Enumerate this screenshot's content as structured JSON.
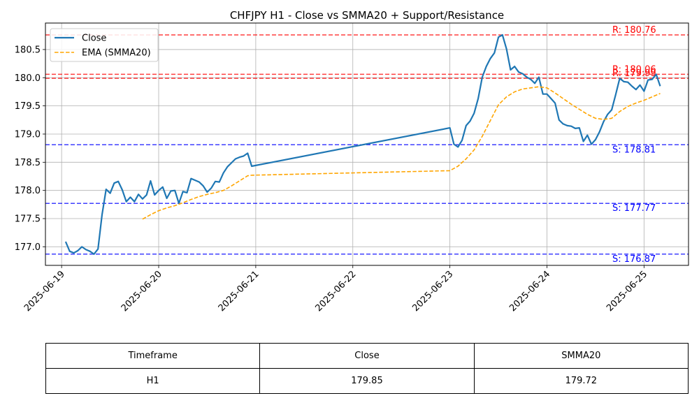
{
  "chart_data": {
    "type": "line",
    "title": "CHFJPY H1 - Close vs SMMA20 + Support/Resistance",
    "xlabel": "",
    "ylabel": "",
    "x_tick_labels": [
      "2025-06-19",
      "2025-06-20",
      "2025-06-21",
      "2025-06-22",
      "2025-06-23",
      "2025-06-24",
      "2025-06-25"
    ],
    "y_tick_labels": [
      "177.0",
      "177.5",
      "178.0",
      "178.5",
      "179.0",
      "179.5",
      "180.0",
      "180.5"
    ],
    "xlim": [
      "2025-06-18 20:00",
      "2025-06-25 11:00"
    ],
    "ylim": [
      176.67,
      180.97
    ],
    "grid": true,
    "legend": "top-left",
    "series": [
      {
        "name": "Close",
        "color": "#1f77b4",
        "style": "solid",
        "points": [
          [
            "2025-06-19 01:00",
            177.09
          ],
          [
            "2025-06-19 02:00",
            176.92
          ],
          [
            "2025-06-19 03:00",
            176.89
          ],
          [
            "2025-06-19 04:00",
            176.93
          ],
          [
            "2025-06-19 05:00",
            177.0
          ],
          [
            "2025-06-19 06:00",
            176.95
          ],
          [
            "2025-06-19 07:00",
            176.92
          ],
          [
            "2025-06-19 08:00",
            176.87
          ],
          [
            "2025-06-19 09:00",
            176.96
          ],
          [
            "2025-06-19 10:00",
            177.57
          ],
          [
            "2025-06-19 11:00",
            178.02
          ],
          [
            "2025-06-19 12:00",
            177.95
          ],
          [
            "2025-06-19 13:00",
            178.13
          ],
          [
            "2025-06-19 14:00",
            178.16
          ],
          [
            "2025-06-19 15:00",
            178.01
          ],
          [
            "2025-06-19 16:00",
            177.8
          ],
          [
            "2025-06-19 17:00",
            177.88
          ],
          [
            "2025-06-19 18:00",
            177.8
          ],
          [
            "2025-06-19 19:00",
            177.93
          ],
          [
            "2025-06-19 20:00",
            177.85
          ],
          [
            "2025-06-19 21:00",
            177.92
          ],
          [
            "2025-06-19 22:00",
            178.17
          ],
          [
            "2025-06-19 23:00",
            177.92
          ],
          [
            "2025-06-20 00:00",
            178.0
          ],
          [
            "2025-06-20 01:00",
            178.06
          ],
          [
            "2025-06-20 02:00",
            177.86
          ],
          [
            "2025-06-20 03:00",
            177.99
          ],
          [
            "2025-06-20 04:00",
            178.0
          ],
          [
            "2025-06-20 05:00",
            177.77
          ],
          [
            "2025-06-20 06:00",
            177.98
          ],
          [
            "2025-06-20 07:00",
            177.96
          ],
          [
            "2025-06-20 08:00",
            178.21
          ],
          [
            "2025-06-20 09:00",
            178.18
          ],
          [
            "2025-06-20 10:00",
            178.15
          ],
          [
            "2025-06-20 11:00",
            178.08
          ],
          [
            "2025-06-20 12:00",
            177.97
          ],
          [
            "2025-06-20 13:00",
            178.04
          ],
          [
            "2025-06-20 14:00",
            178.16
          ],
          [
            "2025-06-20 15:00",
            178.15
          ],
          [
            "2025-06-20 16:00",
            178.31
          ],
          [
            "2025-06-20 17:00",
            178.42
          ],
          [
            "2025-06-20 18:00",
            178.49
          ],
          [
            "2025-06-20 19:00",
            178.56
          ],
          [
            "2025-06-20 20:00",
            178.59
          ],
          [
            "2025-06-20 21:00",
            178.61
          ],
          [
            "2025-06-20 22:00",
            178.66
          ],
          [
            "2025-06-20 23:00",
            178.43
          ],
          [
            "2025-06-23 00:00",
            179.11
          ],
          [
            "2025-06-23 01:00",
            178.82
          ],
          [
            "2025-06-23 02:00",
            178.77
          ],
          [
            "2025-06-23 03:00",
            178.89
          ],
          [
            "2025-06-23 04:00",
            179.15
          ],
          [
            "2025-06-23 05:00",
            179.23
          ],
          [
            "2025-06-23 06:00",
            179.37
          ],
          [
            "2025-06-23 07:00",
            179.63
          ],
          [
            "2025-06-23 08:00",
            180.01
          ],
          [
            "2025-06-23 09:00",
            180.2
          ],
          [
            "2025-06-23 10:00",
            180.34
          ],
          [
            "2025-06-23 11:00",
            180.44
          ],
          [
            "2025-06-23 12:00",
            180.72
          ],
          [
            "2025-06-23 13:00",
            180.76
          ],
          [
            "2025-06-23 14:00",
            180.51
          ],
          [
            "2025-06-23 15:00",
            180.14
          ],
          [
            "2025-06-23 16:00",
            180.2
          ],
          [
            "2025-06-23 17:00",
            180.1
          ],
          [
            "2025-06-23 18:00",
            180.07
          ],
          [
            "2025-06-23 19:00",
            180.01
          ],
          [
            "2025-06-23 20:00",
            179.97
          ],
          [
            "2025-06-23 21:00",
            179.9
          ],
          [
            "2025-06-23 22:00",
            180.01
          ],
          [
            "2025-06-23 23:00",
            179.71
          ],
          [
            "2025-06-24 00:00",
            179.71
          ],
          [
            "2025-06-24 01:00",
            179.63
          ],
          [
            "2025-06-24 02:00",
            179.55
          ],
          [
            "2025-06-24 03:00",
            179.25
          ],
          [
            "2025-06-24 04:00",
            179.18
          ],
          [
            "2025-06-24 05:00",
            179.15
          ],
          [
            "2025-06-24 06:00",
            179.14
          ],
          [
            "2025-06-24 07:00",
            179.1
          ],
          [
            "2025-06-24 08:00",
            179.11
          ],
          [
            "2025-06-24 09:00",
            178.87
          ],
          [
            "2025-06-24 10:00",
            178.98
          ],
          [
            "2025-06-24 11:00",
            178.82
          ],
          [
            "2025-06-24 12:00",
            178.9
          ],
          [
            "2025-06-24 13:00",
            179.04
          ],
          [
            "2025-06-24 14:00",
            179.22
          ],
          [
            "2025-06-24 15:00",
            179.35
          ],
          [
            "2025-06-24 16:00",
            179.43
          ],
          [
            "2025-06-24 17:00",
            179.7
          ],
          [
            "2025-06-24 18:00",
            179.99
          ],
          [
            "2025-06-24 19:00",
            179.93
          ],
          [
            "2025-06-24 20:00",
            179.92
          ],
          [
            "2025-06-24 21:00",
            179.85
          ],
          [
            "2025-06-24 22:00",
            179.79
          ],
          [
            "2025-06-24 23:00",
            179.87
          ],
          [
            "2025-06-25 00:00",
            179.76
          ],
          [
            "2025-06-25 01:00",
            179.96
          ],
          [
            "2025-06-25 02:00",
            179.97
          ],
          [
            "2025-06-25 03:00",
            180.06
          ],
          [
            "2025-06-25 04:00",
            179.85
          ]
        ]
      },
      {
        "name": "EMA (SMMA20)",
        "color": "#ffa500",
        "style": "dashed",
        "points": [
          [
            "2025-06-19 20:00",
            177.49
          ],
          [
            "2025-06-19 22:00",
            177.57
          ],
          [
            "2025-06-20 00:00",
            177.64
          ],
          [
            "2025-06-20 02:00",
            177.69
          ],
          [
            "2025-06-20 04:00",
            177.73
          ],
          [
            "2025-06-20 06:00",
            177.78
          ],
          [
            "2025-06-20 08:00",
            177.84
          ],
          [
            "2025-06-20 10:00",
            177.89
          ],
          [
            "2025-06-20 12:00",
            177.93
          ],
          [
            "2025-06-20 14:00",
            177.96
          ],
          [
            "2025-06-20 16:00",
            178.0
          ],
          [
            "2025-06-20 18:00",
            178.08
          ],
          [
            "2025-06-20 20:00",
            178.17
          ],
          [
            "2025-06-20 22:00",
            178.26
          ],
          [
            "2025-06-20 23:00",
            178.27
          ],
          [
            "2025-06-23 00:00",
            178.35
          ],
          [
            "2025-06-23 02:00",
            178.43
          ],
          [
            "2025-06-23 04:00",
            178.56
          ],
          [
            "2025-06-23 06:00",
            178.72
          ],
          [
            "2025-06-23 08:00",
            178.96
          ],
          [
            "2025-06-23 10:00",
            179.24
          ],
          [
            "2025-06-23 12:00",
            179.52
          ],
          [
            "2025-06-23 14:00",
            179.66
          ],
          [
            "2025-06-23 16:00",
            179.75
          ],
          [
            "2025-06-23 18:00",
            179.8
          ],
          [
            "2025-06-23 20:00",
            179.82
          ],
          [
            "2025-06-23 22:00",
            179.84
          ],
          [
            "2025-06-24 00:00",
            179.82
          ],
          [
            "2025-06-24 02:00",
            179.73
          ],
          [
            "2025-06-24 04:00",
            179.63
          ],
          [
            "2025-06-24 06:00",
            179.53
          ],
          [
            "2025-06-24 08:00",
            179.44
          ],
          [
            "2025-06-24 10:00",
            179.35
          ],
          [
            "2025-06-24 12:00",
            179.28
          ],
          [
            "2025-06-24 14:00",
            179.26
          ],
          [
            "2025-06-24 16:00",
            179.28
          ],
          [
            "2025-06-24 18:00",
            179.4
          ],
          [
            "2025-06-24 20:00",
            179.49
          ],
          [
            "2025-06-24 22:00",
            179.55
          ],
          [
            "2025-06-25 00:00",
            179.6
          ],
          [
            "2025-06-25 02:00",
            179.66
          ],
          [
            "2025-06-25 04:00",
            179.72
          ]
        ]
      }
    ],
    "hlines": [
      {
        "kind": "resistance",
        "value": 180.76,
        "label": "R: 180.76",
        "color": "#ff0000"
      },
      {
        "kind": "resistance",
        "value": 180.06,
        "label": "R: 180.06",
        "color": "#ff0000"
      },
      {
        "kind": "resistance",
        "value": 179.99,
        "label": "R: 179.99",
        "color": "#ff0000"
      },
      {
        "kind": "support",
        "value": 178.81,
        "label": "S: 178.81",
        "color": "#0000ff"
      },
      {
        "kind": "support",
        "value": 177.77,
        "label": "S: 177.77",
        "color": "#0000ff"
      },
      {
        "kind": "support",
        "value": 176.87,
        "label": "S: 176.87",
        "color": "#0000ff"
      }
    ]
  },
  "table": {
    "headers": [
      "Timeframe",
      "Close",
      "SMMA20"
    ],
    "row": [
      "H1",
      "179.85",
      "179.72"
    ]
  }
}
